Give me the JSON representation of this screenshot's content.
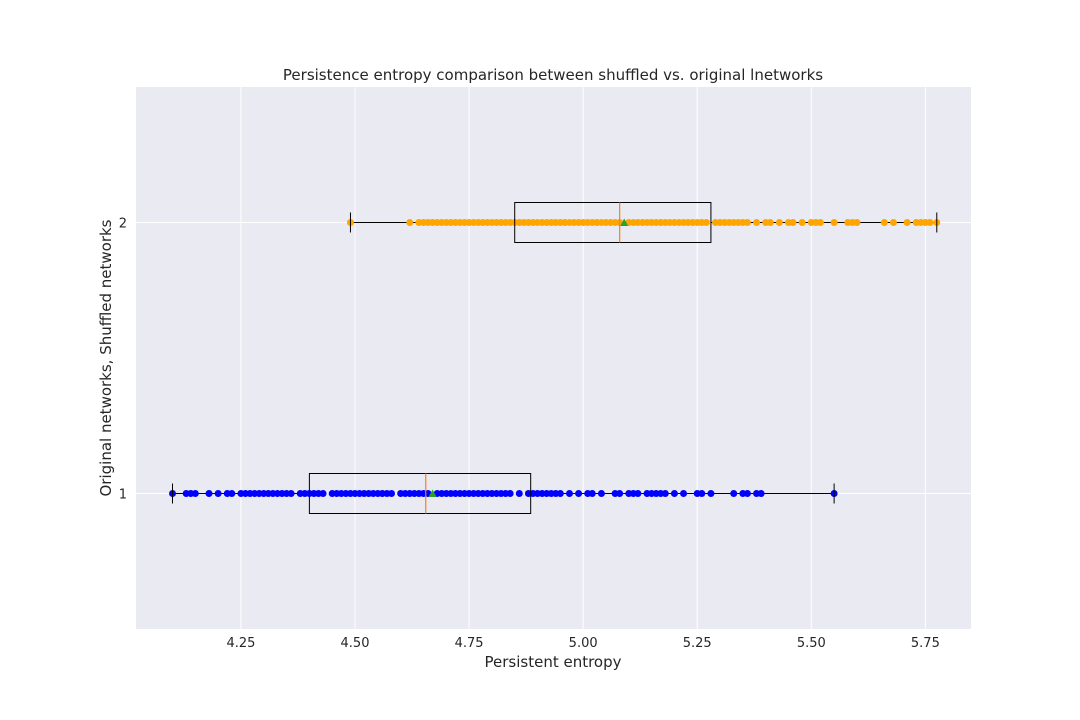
{
  "chart_data": {
    "type": "boxplot",
    "orientation": "horizontal",
    "title": "Persistence entropy comparison between shuffled vs. original lnetworks",
    "xlabel": "Persistent entropy",
    "ylabel": "Original networks, Shuffled networks",
    "xlim": [
      4.02,
      5.85
    ],
    "ylim": [
      0.5,
      2.5
    ],
    "x_ticks": [
      "4.25",
      "4.50",
      "4.75",
      "5.00",
      "5.25",
      "5.50",
      "5.75"
    ],
    "x_tick_values": [
      4.25,
      4.5,
      4.75,
      5.0,
      5.25,
      5.5,
      5.75
    ],
    "y_ticks": [
      "1",
      "2"
    ],
    "y_tick_values": [
      1,
      2
    ],
    "grid": true,
    "background": "#eaeaf2",
    "series": [
      {
        "position": 1,
        "point_color": "#0000ff",
        "min": 4.1,
        "q1": 4.4,
        "median": 4.655,
        "q3": 4.885,
        "max": 5.55,
        "mean": 4.67,
        "points": [
          4.1,
          4.13,
          4.14,
          4.15,
          4.18,
          4.2,
          4.22,
          4.23,
          4.25,
          4.26,
          4.27,
          4.28,
          4.29,
          4.3,
          4.31,
          4.32,
          4.33,
          4.34,
          4.35,
          4.36,
          4.38,
          4.39,
          4.4,
          4.41,
          4.42,
          4.43,
          4.45,
          4.46,
          4.47,
          4.48,
          4.49,
          4.5,
          4.51,
          4.52,
          4.53,
          4.54,
          4.55,
          4.56,
          4.57,
          4.58,
          4.6,
          4.61,
          4.62,
          4.63,
          4.64,
          4.65,
          4.66,
          4.68,
          4.69,
          4.7,
          4.71,
          4.72,
          4.73,
          4.74,
          4.75,
          4.76,
          4.77,
          4.78,
          4.79,
          4.8,
          4.81,
          4.82,
          4.83,
          4.84,
          4.86,
          4.88,
          4.89,
          4.9,
          4.91,
          4.92,
          4.93,
          4.94,
          4.95,
          4.97,
          4.99,
          5.01,
          5.02,
          5.04,
          5.07,
          5.08,
          5.1,
          5.11,
          5.12,
          5.14,
          5.15,
          5.16,
          5.17,
          5.18,
          5.2,
          5.22,
          5.25,
          5.26,
          5.28,
          5.33,
          5.35,
          5.36,
          5.38,
          5.39,
          5.55
        ]
      },
      {
        "position": 2,
        "point_color": "#ffa500",
        "min": 4.49,
        "q1": 4.85,
        "median": 5.08,
        "q3": 5.28,
        "max": 5.775,
        "mean": 5.09,
        "points": [
          4.49,
          4.62,
          4.64,
          4.65,
          4.66,
          4.67,
          4.68,
          4.69,
          4.7,
          4.71,
          4.72,
          4.73,
          4.74,
          4.75,
          4.76,
          4.77,
          4.78,
          4.79,
          4.8,
          4.81,
          4.82,
          4.83,
          4.84,
          4.85,
          4.86,
          4.87,
          4.88,
          4.89,
          4.9,
          4.91,
          4.92,
          4.93,
          4.94,
          4.95,
          4.96,
          4.97,
          4.98,
          4.99,
          5.0,
          5.01,
          5.02,
          5.03,
          5.04,
          5.05,
          5.06,
          5.07,
          5.08,
          5.1,
          5.11,
          5.12,
          5.13,
          5.14,
          5.15,
          5.16,
          5.17,
          5.18,
          5.19,
          5.2,
          5.21,
          5.22,
          5.23,
          5.24,
          5.25,
          5.26,
          5.27,
          5.29,
          5.3,
          5.31,
          5.32,
          5.33,
          5.34,
          5.35,
          5.36,
          5.38,
          5.4,
          5.41,
          5.43,
          5.45,
          5.46,
          5.48,
          5.5,
          5.51,
          5.52,
          5.55,
          5.58,
          5.59,
          5.6,
          5.66,
          5.68,
          5.71,
          5.73,
          5.74,
          5.75,
          5.76,
          5.775
        ]
      }
    ]
  }
}
